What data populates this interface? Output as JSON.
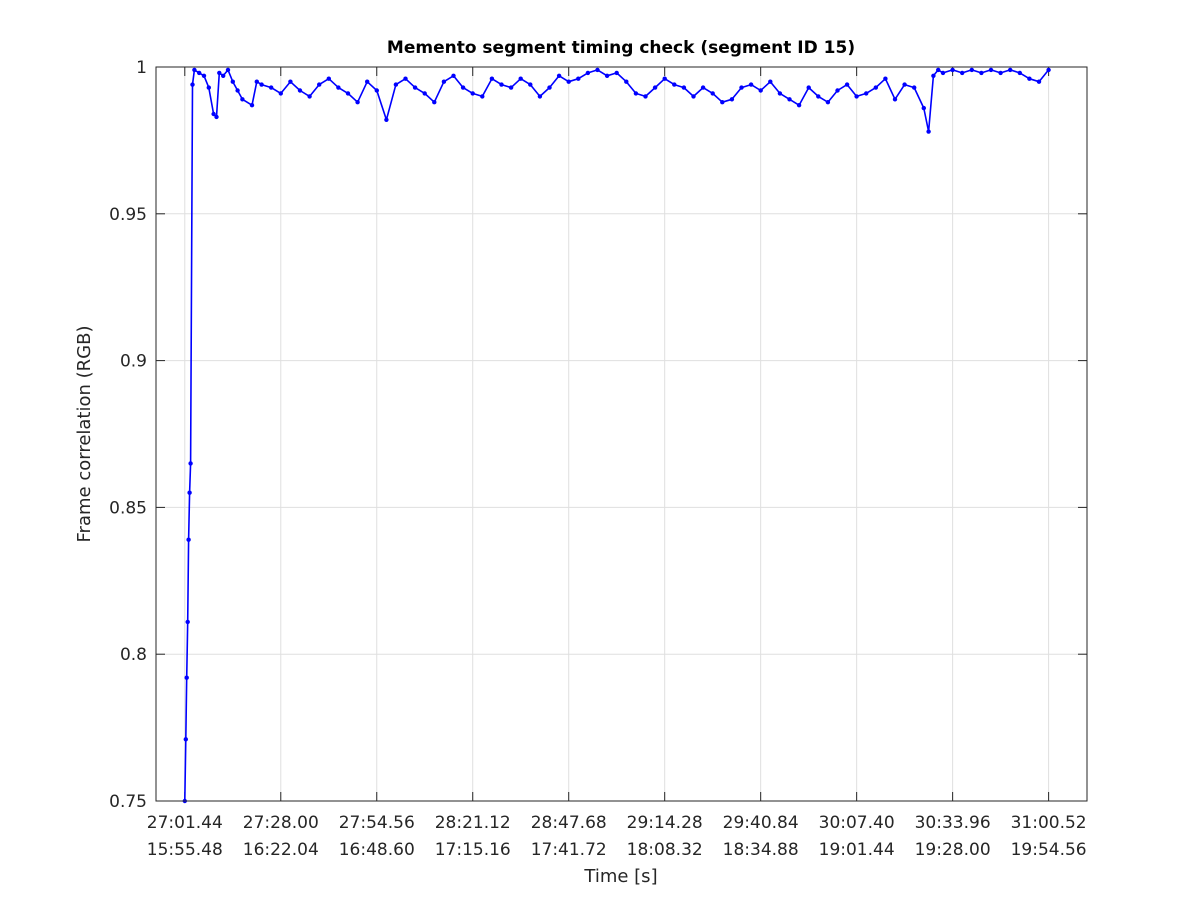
{
  "chart_data": {
    "type": "line",
    "title": "Memento segment timing check (segment ID 15)",
    "xlabel": "Time [s]",
    "ylabel": "Frame correlation (RGB)",
    "ylim": [
      0.75,
      1
    ],
    "xlim": [
      -0.3,
      9.4
    ],
    "grid": true,
    "y_ticks": [
      "0.75",
      "0.8",
      "0.85",
      "0.9",
      "0.95",
      "1"
    ],
    "x_ticks_row1": [
      "27:01.44",
      "27:28.00",
      "27:54.56",
      "28:21.12",
      "28:47.68",
      "29:14.28",
      "29:40.84",
      "30:07.40",
      "30:33.96",
      "31:00.52"
    ],
    "x_ticks_row2": [
      "15:55.48",
      "16:22.04",
      "16:48.60",
      "17:15.16",
      "17:41.72",
      "18:08.32",
      "18:34.88",
      "19:01.44",
      "19:28.00",
      "19:54.56"
    ],
    "series": [
      {
        "color": "#0000ff",
        "marker": "dot",
        "x": [
          0.0,
          0.01,
          0.02,
          0.03,
          0.04,
          0.05,
          0.06,
          0.08,
          0.1,
          0.15,
          0.2,
          0.25,
          0.3,
          0.33,
          0.36,
          0.4,
          0.45,
          0.5,
          0.55,
          0.6,
          0.7,
          0.75,
          0.8,
          0.9,
          1.0,
          1.1,
          1.2,
          1.3,
          1.4,
          1.5,
          1.6,
          1.7,
          1.8,
          1.9,
          2.0,
          2.1,
          2.2,
          2.3,
          2.4,
          2.5,
          2.6,
          2.7,
          2.8,
          2.9,
          3.0,
          3.1,
          3.2,
          3.3,
          3.4,
          3.5,
          3.6,
          3.7,
          3.8,
          3.9,
          4.0,
          4.1,
          4.2,
          4.3,
          4.4,
          4.5,
          4.6,
          4.7,
          4.8,
          4.9,
          5.0,
          5.1,
          5.2,
          5.3,
          5.4,
          5.5,
          5.6,
          5.7,
          5.8,
          5.9,
          6.0,
          6.1,
          6.2,
          6.3,
          6.4,
          6.5,
          6.6,
          6.7,
          6.8,
          6.9,
          7.0,
          7.1,
          7.2,
          7.3,
          7.4,
          7.5,
          7.6,
          7.7,
          7.75,
          7.8,
          7.85,
          7.9,
          8.0,
          8.1,
          8.2,
          8.3,
          8.4,
          8.5,
          8.6,
          8.7,
          8.8,
          8.9,
          9.0
        ],
        "y": [
          0.75,
          0.771,
          0.792,
          0.811,
          0.839,
          0.855,
          0.865,
          0.994,
          0.999,
          0.998,
          0.997,
          0.993,
          0.984,
          0.983,
          0.998,
          0.997,
          0.999,
          0.995,
          0.992,
          0.989,
          0.987,
          0.995,
          0.994,
          0.993,
          0.991,
          0.995,
          0.992,
          0.99,
          0.994,
          0.996,
          0.993,
          0.991,
          0.988,
          0.995,
          0.992,
          0.982,
          0.994,
          0.996,
          0.993,
          0.991,
          0.988,
          0.995,
          0.997,
          0.993,
          0.991,
          0.99,
          0.996,
          0.994,
          0.993,
          0.996,
          0.994,
          0.99,
          0.993,
          0.997,
          0.995,
          0.996,
          0.998,
          0.999,
          0.997,
          0.998,
          0.995,
          0.991,
          0.99,
          0.993,
          0.996,
          0.994,
          0.993,
          0.99,
          0.993,
          0.991,
          0.988,
          0.989,
          0.993,
          0.994,
          0.992,
          0.995,
          0.991,
          0.989,
          0.987,
          0.993,
          0.99,
          0.988,
          0.992,
          0.994,
          0.99,
          0.991,
          0.993,
          0.996,
          0.989,
          0.994,
          0.993,
          0.986,
          0.978,
          0.997,
          0.999,
          0.998,
          0.999,
          0.998,
          0.999,
          0.998,
          0.999,
          0.998,
          0.999,
          0.998,
          0.996,
          0.995,
          0.999
        ]
      }
    ]
  }
}
